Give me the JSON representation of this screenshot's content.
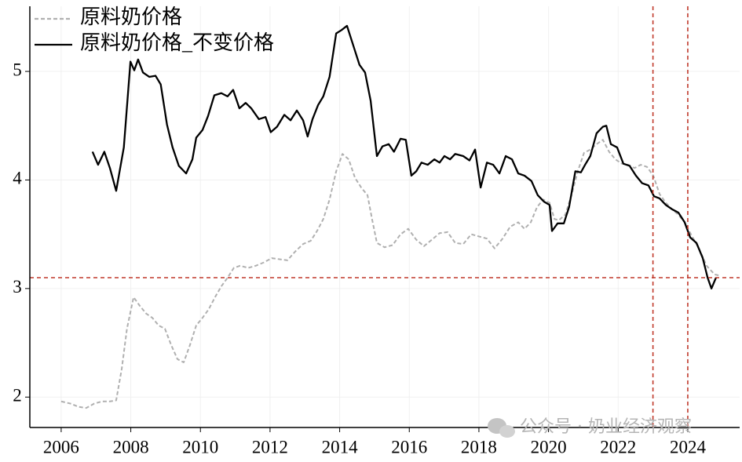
{
  "chart_data": {
    "type": "line",
    "grid": true,
    "legend": "upper left",
    "annotations": [
      "公众号 · 奶业经济观察"
    ],
    "xlim": [
      2005.1,
      2025.49
    ],
    "ylim": [
      1.72,
      5.6
    ],
    "xticks": [
      2006,
      2008,
      2010,
      2012,
      2014,
      2016,
      2018,
      2020,
      2022,
      2024
    ],
    "yticks": [
      2,
      3,
      4,
      5
    ],
    "hlines": [
      {
        "value": 3.1,
        "color": "#c0392b"
      }
    ],
    "vlines": [
      {
        "value": 2023.0,
        "color": "#c0392b"
      },
      {
        "value": 2024.0,
        "color": "#c0392b"
      }
    ],
    "series": [
      {
        "name": "原料奶价格",
        "color": "#b0b0b0",
        "dash": true,
        "x": [
          2006.0,
          2006.27,
          2006.5,
          2006.72,
          2006.95,
          2007.17,
          2007.4,
          2007.58,
          2007.74,
          2007.89,
          2008.08,
          2008.26,
          2008.44,
          2008.62,
          2008.8,
          2008.98,
          2009.16,
          2009.34,
          2009.52,
          2009.7,
          2009.88,
          2010.06,
          2010.24,
          2010.42,
          2010.6,
          2010.78,
          2010.96,
          2011.14,
          2011.37,
          2011.59,
          2011.82,
          2012.05,
          2012.27,
          2012.5,
          2012.72,
          2012.95,
          2013.17,
          2013.35,
          2013.53,
          2013.71,
          2013.9,
          2014.08,
          2014.26,
          2014.44,
          2014.62,
          2014.8,
          2014.93,
          2015.07,
          2015.29,
          2015.52,
          2015.75,
          2015.97,
          2016.2,
          2016.42,
          2016.65,
          2016.87,
          2017.1,
          2017.32,
          2017.55,
          2017.78,
          2018.0,
          2018.23,
          2018.45,
          2018.68,
          2018.9,
          2019.13,
          2019.31,
          2019.49,
          2019.67,
          2019.85,
          2020.03,
          2020.17,
          2020.3,
          2020.48,
          2020.66,
          2020.84,
          2021.02,
          2021.2,
          2021.38,
          2021.56,
          2021.74,
          2021.92,
          2022.11,
          2022.29,
          2022.47,
          2022.65,
          2022.83,
          2023.01,
          2023.19,
          2023.37,
          2023.55,
          2023.73,
          2023.91,
          2024.09,
          2024.32,
          2024.54,
          2024.77,
          2024.9
        ],
        "values": [
          1.96,
          1.94,
          1.91,
          1.9,
          1.94,
          1.96,
          1.96,
          1.97,
          2.26,
          2.63,
          2.92,
          2.84,
          2.77,
          2.73,
          2.66,
          2.63,
          2.48,
          2.35,
          2.32,
          2.48,
          2.66,
          2.73,
          2.81,
          2.92,
          3.02,
          3.1,
          3.19,
          3.21,
          3.19,
          3.21,
          3.24,
          3.28,
          3.27,
          3.26,
          3.34,
          3.41,
          3.44,
          3.53,
          3.64,
          3.82,
          4.08,
          4.24,
          4.19,
          4.02,
          3.93,
          3.86,
          3.64,
          3.42,
          3.38,
          3.4,
          3.5,
          3.55,
          3.45,
          3.39,
          3.45,
          3.51,
          3.52,
          3.42,
          3.41,
          3.5,
          3.48,
          3.46,
          3.37,
          3.46,
          3.57,
          3.61,
          3.55,
          3.61,
          3.75,
          3.82,
          3.79,
          3.64,
          3.63,
          3.68,
          3.86,
          4.08,
          4.25,
          4.28,
          4.33,
          4.37,
          4.26,
          4.19,
          4.15,
          4.14,
          4.11,
          4.14,
          4.12,
          4.04,
          3.87,
          3.79,
          3.73,
          3.68,
          3.61,
          3.5,
          3.37,
          3.21,
          3.13,
          3.12
        ]
      },
      {
        "name": "原料奶价格_不变价格",
        "color": "#000000",
        "dash": false,
        "x": [
          2006.9,
          2007.06,
          2007.24,
          2007.4,
          2007.58,
          2007.8,
          2007.99,
          2008.1,
          2008.21,
          2008.35,
          2008.53,
          2008.71,
          2008.86,
          2009.04,
          2009.2,
          2009.38,
          2009.59,
          2009.77,
          2009.88,
          2010.06,
          2010.22,
          2010.4,
          2010.6,
          2010.78,
          2010.94,
          2011.12,
          2011.3,
          2011.46,
          2011.68,
          2011.87,
          2012.02,
          2012.2,
          2012.41,
          2012.59,
          2012.77,
          2012.95,
          2013.08,
          2013.22,
          2013.38,
          2013.53,
          2013.71,
          2013.9,
          2014.05,
          2014.21,
          2014.39,
          2014.57,
          2014.73,
          2014.89,
          2015.07,
          2015.23,
          2015.41,
          2015.56,
          2015.75,
          2015.9,
          2016.06,
          2016.2,
          2016.35,
          2016.53,
          2016.72,
          2016.87,
          2017.01,
          2017.17,
          2017.32,
          2017.55,
          2017.73,
          2017.89,
          2018.05,
          2018.23,
          2018.41,
          2018.59,
          2018.77,
          2018.95,
          2019.13,
          2019.31,
          2019.51,
          2019.69,
          2019.87,
          2020.03,
          2020.1,
          2020.26,
          2020.44,
          2020.59,
          2020.77,
          2020.93,
          2021.05,
          2021.2,
          2021.38,
          2021.56,
          2021.66,
          2021.79,
          2021.97,
          2022.15,
          2022.33,
          2022.51,
          2022.69,
          2022.87,
          2023.03,
          2023.19,
          2023.37,
          2023.55,
          2023.73,
          2023.91,
          2024.07,
          2024.25,
          2024.43,
          2024.57,
          2024.68,
          2024.81
        ],
        "values": [
          4.26,
          4.14,
          4.26,
          4.11,
          3.9,
          4.3,
          5.09,
          5.01,
          5.11,
          4.99,
          4.95,
          4.96,
          4.88,
          4.51,
          4.3,
          4.13,
          4.06,
          4.19,
          4.39,
          4.46,
          4.59,
          4.78,
          4.8,
          4.77,
          4.83,
          4.66,
          4.71,
          4.66,
          4.56,
          4.58,
          4.44,
          4.49,
          4.6,
          4.55,
          4.64,
          4.55,
          4.4,
          4.56,
          4.69,
          4.77,
          4.95,
          5.35,
          5.38,
          5.42,
          5.24,
          5.06,
          4.99,
          4.73,
          4.22,
          4.31,
          4.33,
          4.26,
          4.38,
          4.37,
          4.04,
          4.08,
          4.16,
          4.14,
          4.19,
          4.16,
          4.22,
          4.19,
          4.24,
          4.22,
          4.18,
          4.28,
          3.93,
          4.16,
          4.14,
          4.06,
          4.22,
          4.19,
          4.06,
          4.04,
          3.99,
          3.86,
          3.8,
          3.77,
          3.53,
          3.6,
          3.6,
          3.75,
          4.08,
          4.07,
          4.14,
          4.22,
          4.43,
          4.49,
          4.5,
          4.33,
          4.3,
          4.15,
          4.13,
          4.04,
          3.97,
          3.95,
          3.85,
          3.83,
          3.77,
          3.73,
          3.7,
          3.61,
          3.47,
          3.42,
          3.28,
          3.1,
          3.0,
          3.1
        ]
      }
    ]
  }
}
